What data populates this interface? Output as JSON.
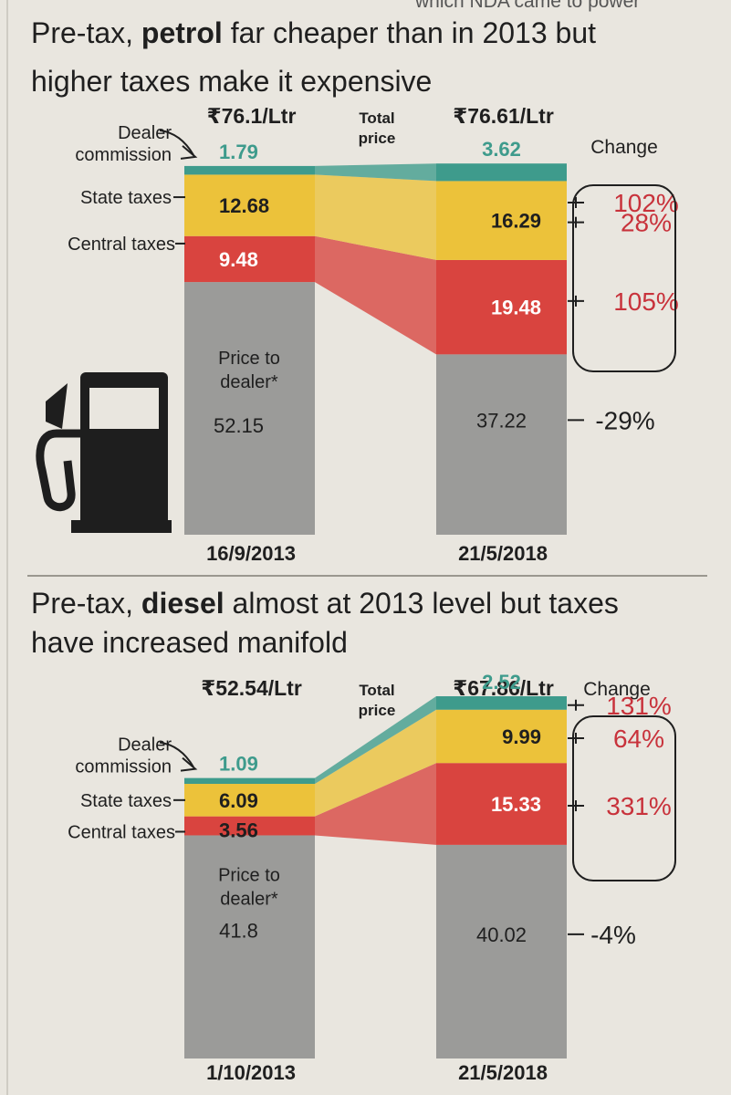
{
  "top_strip": "which NDA came to power",
  "labels": {
    "total_price": [
      "Total",
      "price"
    ],
    "change": "Change",
    "dealer_commission": [
      "Dealer",
      "commission"
    ],
    "state_taxes": "State taxes",
    "central_taxes": "Central taxes",
    "price_to_dealer": [
      "Price to",
      "dealer*"
    ]
  },
  "colors": {
    "dealer_commission": "#3e9b8c",
    "state_taxes": "#ecc23a",
    "central_taxes": "#d9443f",
    "price_to_dealer": "#9b9b99",
    "change_text": "#c8323b",
    "icon": "#1e1e1e"
  },
  "icon": "fuel-pump-icon",
  "chart_data": [
    {
      "type": "bar",
      "stacked": true,
      "title_parts": [
        "Pre-tax, ",
        "petrol",
        " far cheaper than in 2013 but higher taxes make it expensive"
      ],
      "title_lines": [
        [
          "Pre-tax, ",
          "petrol",
          " far cheaper than in 2013 but"
        ],
        [
          "higher taxes make it expensive",
          "",
          ""
        ]
      ],
      "categories": [
        "16/9/2013",
        "21/5/2018"
      ],
      "totals": [
        "₹76.1/Ltr",
        "₹76.61/Ltr"
      ],
      "series": [
        {
          "name": "Price to dealer*",
          "key": "price_to_dealer",
          "values": [
            52.15,
            37.22
          ],
          "labels": [
            "52.15",
            "37.22"
          ],
          "change": "-29%"
        },
        {
          "name": "Central taxes",
          "key": "central_taxes",
          "values": [
            9.48,
            19.48
          ],
          "labels": [
            "9.48",
            "19.48"
          ],
          "change": "105%"
        },
        {
          "name": "State taxes",
          "key": "state_taxes",
          "values": [
            12.68,
            16.29
          ],
          "labels": [
            "12.68",
            "16.29"
          ],
          "change": "28%"
        },
        {
          "name": "Dealer commission",
          "key": "dealer_commission",
          "values": [
            1.79,
            3.62
          ],
          "labels": [
            "1.79",
            "3.62"
          ],
          "change": "102%"
        }
      ]
    },
    {
      "type": "bar",
      "stacked": true,
      "title_parts": [
        "Pre-tax, ",
        "diesel",
        " almost at 2013 level but taxes have increased manifold"
      ],
      "title_lines": [
        [
          "Pre-tax, ",
          "diesel",
          " almost at 2013 level but taxes"
        ],
        [
          "have increased manifold",
          "",
          ""
        ]
      ],
      "categories": [
        "1/10/2013",
        "21/5/2018"
      ],
      "totals": [
        "₹52.54/Ltr",
        "₹67.86/Ltr"
      ],
      "series": [
        {
          "name": "Price to dealer*",
          "key": "price_to_dealer",
          "values": [
            41.8,
            40.02
          ],
          "labels": [
            "41.8",
            "40.02"
          ],
          "change": "-4%"
        },
        {
          "name": "Central taxes",
          "key": "central_taxes",
          "values": [
            3.56,
            15.33
          ],
          "labels": [
            "3.56",
            "15.33"
          ],
          "change": "331%"
        },
        {
          "name": "State taxes",
          "key": "state_taxes",
          "values": [
            6.09,
            9.99
          ],
          "labels": [
            "6.09",
            "9.99"
          ],
          "change": "64%"
        },
        {
          "name": "Dealer commission",
          "key": "dealer_commission",
          "values": [
            1.09,
            2.52
          ],
          "labels": [
            "1.09",
            "2.52"
          ],
          "change": "131%"
        }
      ]
    }
  ]
}
